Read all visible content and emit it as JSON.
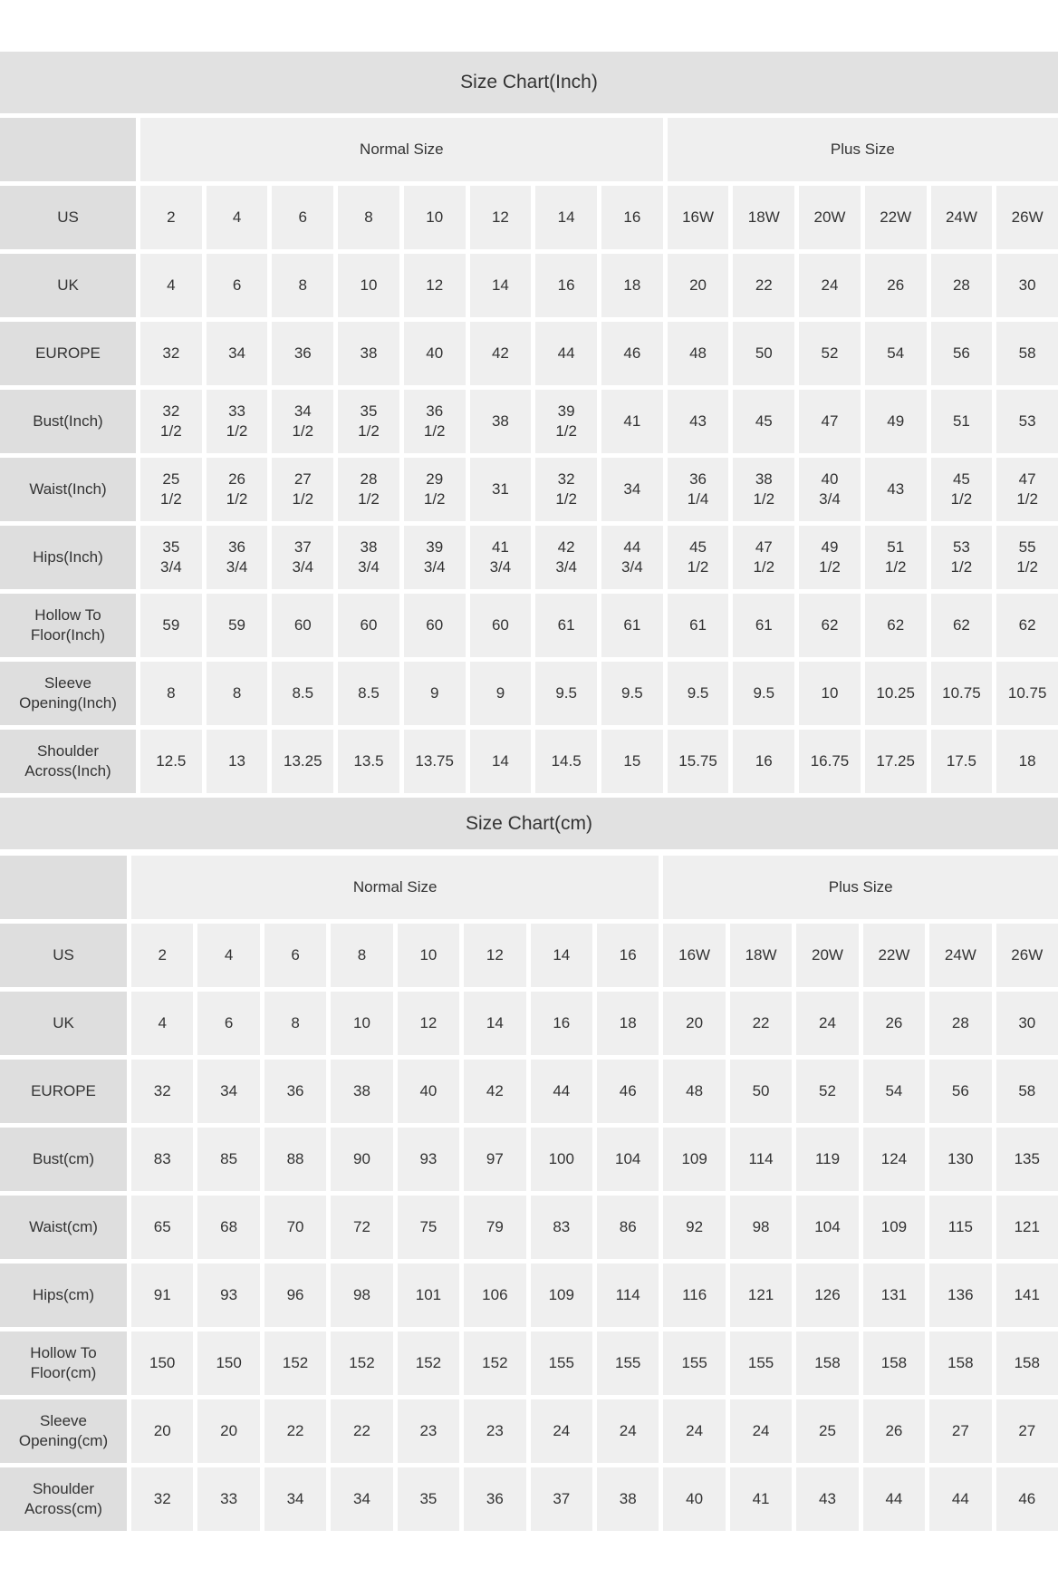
{
  "colors": {
    "title_bar": "#e1e1e1",
    "label_cell": "#dedede",
    "data_cell": "#efefef",
    "text": "#333333",
    "gap": "#ffffff"
  },
  "tables": [
    {
      "title": "Size Chart(Inch)",
      "group_headers": [
        {
          "label": "Normal Size",
          "span": 8
        },
        {
          "label": "Plus Size",
          "span": 6
        }
      ],
      "rows": [
        {
          "label": "US",
          "values": [
            "2",
            "4",
            "6",
            "8",
            "10",
            "12",
            "14",
            "16",
            "16W",
            "18W",
            "20W",
            "22W",
            "24W",
            "26W"
          ]
        },
        {
          "label": "UK",
          "values": [
            "4",
            "6",
            "8",
            "10",
            "12",
            "14",
            "16",
            "18",
            "20",
            "22",
            "24",
            "26",
            "28",
            "30"
          ]
        },
        {
          "label": "EUROPE",
          "values": [
            "32",
            "34",
            "36",
            "38",
            "40",
            "42",
            "44",
            "46",
            "48",
            "50",
            "52",
            "54",
            "56",
            "58"
          ]
        },
        {
          "label": "Bust(Inch)",
          "values": [
            "32\n1/2",
            "33\n1/2",
            "34\n1/2",
            "35\n1/2",
            "36\n1/2",
            "38",
            "39\n1/2",
            "41",
            "43",
            "45",
            "47",
            "49",
            "51",
            "53"
          ]
        },
        {
          "label": "Waist(Inch)",
          "values": [
            "25\n1/2",
            "26\n1/2",
            "27\n1/2",
            "28\n1/2",
            "29\n1/2",
            "31",
            "32\n1/2",
            "34",
            "36\n1/4",
            "38\n1/2",
            "40\n3/4",
            "43",
            "45\n1/2",
            "47\n1/2"
          ]
        },
        {
          "label": "Hips(Inch)",
          "values": [
            "35\n3/4",
            "36\n3/4",
            "37\n3/4",
            "38\n3/4",
            "39\n3/4",
            "41\n3/4",
            "42\n3/4",
            "44\n3/4",
            "45\n1/2",
            "47\n1/2",
            "49\n1/2",
            "51\n1/2",
            "53\n1/2",
            "55\n1/2"
          ]
        },
        {
          "label": "Hollow To\nFloor(Inch)",
          "values": [
            "59",
            "59",
            "60",
            "60",
            "60",
            "60",
            "61",
            "61",
            "61",
            "61",
            "62",
            "62",
            "62",
            "62"
          ]
        },
        {
          "label": "Sleeve\nOpening(Inch)",
          "values": [
            "8",
            "8",
            "8.5",
            "8.5",
            "9",
            "9",
            "9.5",
            "9.5",
            "9.5",
            "9.5",
            "10",
            "10.25",
            "10.75",
            "10.75"
          ]
        },
        {
          "label": "Shoulder\nAcross(Inch)",
          "values": [
            "12.5",
            "13",
            "13.25",
            "13.5",
            "13.75",
            "14",
            "14.5",
            "15",
            "15.75",
            "16",
            "16.75",
            "17.25",
            "17.5",
            "18"
          ]
        }
      ]
    },
    {
      "title": "Size Chart(cm)",
      "group_headers": [
        {
          "label": "Normal Size",
          "span": 8
        },
        {
          "label": "Plus Size",
          "span": 6
        }
      ],
      "rows": [
        {
          "label": "US",
          "values": [
            "2",
            "4",
            "6",
            "8",
            "10",
            "12",
            "14",
            "16",
            "16W",
            "18W",
            "20W",
            "22W",
            "24W",
            "26W"
          ]
        },
        {
          "label": "UK",
          "values": [
            "4",
            "6",
            "8",
            "10",
            "12",
            "14",
            "16",
            "18",
            "20",
            "22",
            "24",
            "26",
            "28",
            "30"
          ]
        },
        {
          "label": "EUROPE",
          "values": [
            "32",
            "34",
            "36",
            "38",
            "40",
            "42",
            "44",
            "46",
            "48",
            "50",
            "52",
            "54",
            "56",
            "58"
          ]
        },
        {
          "label": "Bust(cm)",
          "values": [
            "83",
            "85",
            "88",
            "90",
            "93",
            "97",
            "100",
            "104",
            "109",
            "114",
            "119",
            "124",
            "130",
            "135"
          ]
        },
        {
          "label": "Waist(cm)",
          "values": [
            "65",
            "68",
            "70",
            "72",
            "75",
            "79",
            "83",
            "86",
            "92",
            "98",
            "104",
            "109",
            "115",
            "121"
          ]
        },
        {
          "label": "Hips(cm)",
          "values": [
            "91",
            "93",
            "96",
            "98",
            "101",
            "106",
            "109",
            "114",
            "116",
            "121",
            "126",
            "131",
            "136",
            "141"
          ]
        },
        {
          "label": "Hollow To\nFloor(cm)",
          "values": [
            "150",
            "150",
            "152",
            "152",
            "152",
            "152",
            "155",
            "155",
            "155",
            "155",
            "158",
            "158",
            "158",
            "158"
          ]
        },
        {
          "label": "Sleeve\nOpening(cm)",
          "values": [
            "20",
            "20",
            "22",
            "22",
            "23",
            "23",
            "24",
            "24",
            "24",
            "24",
            "25",
            "26",
            "27",
            "27"
          ]
        },
        {
          "label": "Shoulder\nAcross(cm)",
          "values": [
            "32",
            "33",
            "34",
            "34",
            "35",
            "36",
            "37",
            "38",
            "40",
            "41",
            "43",
            "44",
            "44",
            "46"
          ]
        }
      ]
    }
  ]
}
